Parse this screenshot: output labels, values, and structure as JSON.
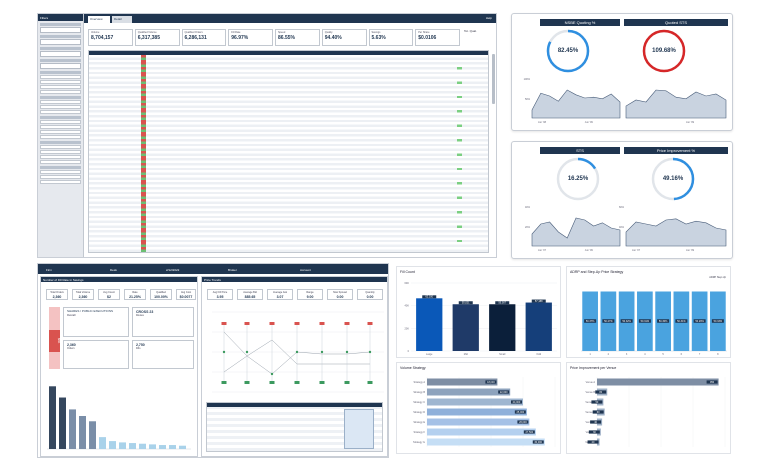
{
  "dash1": {
    "sidebar_title": "Filters",
    "tabs": [
      "Overview",
      "Detail"
    ],
    "help": "Help",
    "kpis": [
      {
        "label": "Volume",
        "value": "8,704,157"
      },
      {
        "label": "Qualified Volume",
        "value": "6,317,385"
      },
      {
        "label": "Qualified Orders",
        "value": "6,286,131"
      },
      {
        "label": "Fill Rate",
        "value": "96.97%"
      },
      {
        "label": "Speed",
        "value": "86.55%"
      },
      {
        "label": "Quality",
        "value": "94.40%"
      },
      {
        "label": "Savings",
        "value": "5.63%"
      },
      {
        "label": "Per Share",
        "value": "$0.0106"
      }
    ],
    "side_label": "Tot. Qual."
  },
  "gauges": [
    {
      "title": "NSBE Quoting %",
      "value": "82.45%",
      "color": "#2f8fe0",
      "fraction": 0.8245
    },
    {
      "title": "Quoted STS",
      "value": "109.68%",
      "color": "#d62728",
      "fraction": 1.0
    },
    {
      "title": "STS",
      "value": "16.25%",
      "color": "#2f8fe0",
      "fraction": 0.1625
    },
    {
      "title": "Price Improvement %",
      "value": "49.16%",
      "color": "#2f8fe0",
      "fraction": 0.4916
    }
  ],
  "area_series": [
    {
      "values": [
        20,
        62,
        55,
        42,
        70,
        58,
        50,
        52,
        48,
        60,
        40
      ],
      "ylab_top": "100%",
      "ylab_bot": "50%",
      "x1": "Jun '08",
      "x2": "Jun '09"
    },
    {
      "values": [
        30,
        45,
        40,
        70,
        68,
        52,
        48,
        65,
        55,
        60,
        45
      ],
      "ylab_top": "",
      "ylab_bot": "",
      "x1": "",
      "x2": "Jun '09"
    },
    {
      "values": [
        30,
        55,
        60,
        35,
        20,
        70,
        65,
        50,
        58,
        45,
        40
      ],
      "ylab_top": "40%",
      "ylab_bot": "20%",
      "x1": "Jun '07",
      "x2": "Jun '09"
    },
    {
      "values": [
        35,
        60,
        55,
        50,
        65,
        68,
        55,
        62,
        58,
        45,
        40
      ],
      "ylab_top": "60%",
      "ylab_bot": "40%",
      "x1": "Jun '07",
      "x2": "Jun '09"
    }
  ],
  "dash2": {
    "top_labels": [
      "Firm",
      "Desk",
      "2/12/2022",
      "Broker",
      "Account"
    ],
    "left_title": "Number of Fill Rate in Savings",
    "left_kpis": [
      {
        "label": "Total Orders",
        "value": "2,360"
      },
      {
        "label": "Total Volume",
        "value": "2,360"
      },
      {
        "label": "Avg Count",
        "value": "$2"
      },
      {
        "label": "Rate",
        "value": "21.25%"
      },
      {
        "label": "Qualified",
        "value": "100.00%"
      },
      {
        "label": "Avg Cost",
        "value": "$0.0077"
      }
    ],
    "hero_value": "$811",
    "hero_label": "SHARES / PUBLIC EXECUTIONS",
    "hero_sub": "Overall",
    "box_a": {
      "value": "CROSS 23",
      "label": "Routes"
    },
    "box_b": {
      "value": "2,360",
      "label": "Orders"
    },
    "box_c": {
      "value": "2,750",
      "label": "Fills"
    },
    "right_title": "Price Trends",
    "right_kpis": [
      {
        "label": "Avg Fill Price",
        "value": "3.95"
      },
      {
        "label": "Average Bid",
        "value": "885.65"
      },
      {
        "label": "Average Ask",
        "value": "3.07"
      },
      {
        "label": "Range",
        "value": "9.00"
      },
      {
        "label": "Max Spread",
        "value": "0.00"
      },
      {
        "label": "Quantity",
        "value": "0.00"
      }
    ],
    "bars": [
      95,
      78,
      60,
      50,
      42,
      18,
      12,
      10,
      9,
      8,
      7,
      6,
      6,
      5
    ]
  },
  "chart_data": [
    {
      "type": "bar",
      "title": "Fill Count",
      "categories": [
        "Large",
        "Mid",
        "Small",
        "Odd"
      ],
      "values": [
        62,
        55,
        55,
        57
      ],
      "ylim": [
        0,
        80
      ],
      "yticks": [
        "60K",
        "40K",
        "20K",
        "0"
      ],
      "data_labels": [
        "62,100",
        "55,021",
        "55,007",
        "57,188"
      ],
      "colors": [
        "#0a58b8",
        "#1f3a68",
        "#0b1f3a",
        "#153f7a"
      ]
    },
    {
      "type": "bar",
      "title": "ADRP and Step-Up Price Strategy",
      "legend": "ADRP Step-Up",
      "categories": [
        "1",
        "2",
        "3",
        "4",
        "5",
        "6",
        "7",
        "8"
      ],
      "values": [
        70,
        70,
        70,
        70,
        70,
        70,
        70,
        70
      ],
      "ylim": [
        0,
        80
      ],
      "data_labels": [
        "50.37%",
        "50.27%",
        "50.32%",
        "50.31%",
        "50.30%",
        "50.31%",
        "50.29%",
        "50.33%"
      ]
    },
    {
      "type": "bar",
      "title": "Volume Strategy",
      "categories": [
        "Strategy A",
        "Strategy B",
        "Strategy C",
        "Strategy D",
        "Strategy E",
        "Strategy F",
        "Strategy G"
      ],
      "values": [
        55,
        65,
        75,
        78,
        80,
        85,
        92
      ],
      "xlim": [
        0,
        100
      ],
      "data_labels": [
        "18,000",
        "22,000",
        "24,000",
        "25,000",
        "26,000",
        "27,500",
        "30,000"
      ]
    },
    {
      "type": "bar",
      "title": "Price Improvement per Venue",
      "categories": [
        "Venue A",
        "Venue B",
        "Venue C",
        "Venue D",
        "Venue E",
        "Venue F",
        "Venue G"
      ],
      "values": [
        95,
        8,
        5,
        6,
        4,
        3,
        2
      ],
      "xlim": [
        0,
        100
      ],
      "data_labels": [
        "950",
        "80",
        "50",
        "60",
        "40",
        "30",
        "20"
      ]
    }
  ]
}
